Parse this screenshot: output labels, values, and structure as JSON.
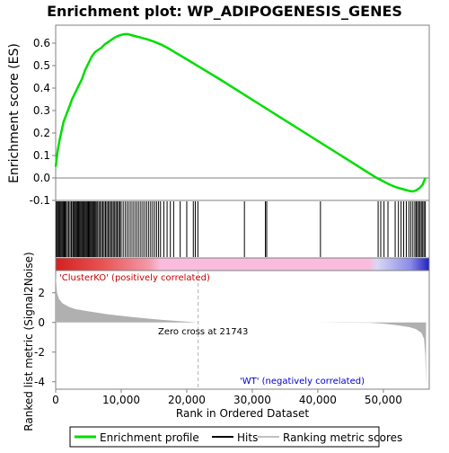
{
  "chart_data": [
    {
      "type": "line",
      "title": "Enrichment plot: WP_ADIPOGENESIS_GENES",
      "ylabel": "Enrichment score (ES)",
      "ylim": [
        -0.1,
        0.68
      ],
      "yticks": [
        "-0.1",
        "0.0",
        "0.1",
        "0.2",
        "0.3",
        "0.4",
        "0.5",
        "0.6"
      ],
      "grid": false,
      "series": [
        {
          "name": "Enrichment profile",
          "color": "#00dd00",
          "x": [
            0,
            300,
            600,
            900,
            1200,
            1600,
            2000,
            2500,
            3000,
            3500,
            4000,
            4500,
            5000,
            5500,
            6000,
            6500,
            7000,
            7500,
            8000,
            8500,
            9000,
            9500,
            10000,
            10500,
            11000,
            12000,
            13000,
            14000,
            15000,
            16000,
            17000,
            18000,
            20000,
            22000,
            25000,
            28000,
            31000,
            34000,
            37000,
            40000,
            43000,
            46000,
            49000,
            51000,
            52000,
            53000,
            54000,
            54500,
            55000,
            55500,
            56000,
            56400
          ],
          "y": [
            0.05,
            0.12,
            0.17,
            0.21,
            0.25,
            0.28,
            0.31,
            0.35,
            0.38,
            0.41,
            0.44,
            0.48,
            0.51,
            0.54,
            0.56,
            0.57,
            0.58,
            0.595,
            0.605,
            0.615,
            0.625,
            0.632,
            0.637,
            0.64,
            0.64,
            0.632,
            0.625,
            0.617,
            0.607,
            0.595,
            0.58,
            0.563,
            0.528,
            0.493,
            0.44,
            0.385,
            0.33,
            0.275,
            0.22,
            0.165,
            0.11,
            0.055,
            0.0,
            -0.03,
            -0.042,
            -0.05,
            -0.058,
            -0.06,
            -0.055,
            -0.045,
            -0.03,
            0.0
          ]
        }
      ]
    },
    {
      "type": "bar",
      "title": "",
      "legend_label": "Hits",
      "hit_positions": [
        100,
        250,
        400,
        550,
        700,
        850,
        1000,
        1150,
        1300,
        1450,
        1600,
        1800,
        2000,
        2200,
        2400,
        2600,
        2750,
        2900,
        3050,
        3200,
        3350,
        3500,
        3650,
        3800,
        3950,
        4100,
        4250,
        4400,
        4550,
        4700,
        4850,
        5000,
        5150,
        5300,
        5450,
        5600,
        5750,
        5900,
        6050,
        6200,
        6400,
        6600,
        6800,
        7000,
        7200,
        7400,
        7600,
        7800,
        8000,
        8200,
        8400,
        8600,
        8800,
        9000,
        9200,
        9400,
        9600,
        9800,
        10000,
        10300,
        10600,
        10900,
        11200,
        11500,
        11800,
        12100,
        12400,
        12700,
        13000,
        13300,
        13600,
        13900,
        14200,
        14500,
        14800,
        15100,
        15400,
        15700,
        16000,
        16500,
        17000,
        17500,
        18000,
        19000,
        20000,
        21000,
        21300,
        21700,
        28800,
        32000,
        32200,
        40400,
        49200,
        49600,
        50100,
        50700,
        51800,
        52300,
        52700,
        53100,
        53500,
        53900,
        54200,
        54500,
        54800,
        55000,
        55200,
        55400,
        55600,
        55800,
        56000,
        56200,
        56400
      ]
    },
    {
      "type": "area",
      "ylabel": "Ranked list metric (Signal2Noise)",
      "xlabel": "Rank in Ordered Dataset",
      "xlim": [
        0,
        57000
      ],
      "ylim": [
        -4.5,
        3.5
      ],
      "xticks": [
        "0",
        "10,000",
        "20,000",
        "30,000",
        "40,000",
        "50,000"
      ],
      "yticks": [
        "-4",
        "-2",
        "0",
        "2"
      ],
      "series": [
        {
          "name": "Ranking metric scores",
          "color": "#b0b0b0",
          "x": [
            0,
            200,
            500,
            1000,
            2000,
            3000,
            5000,
            8000,
            12000,
            16000,
            20000,
            21743,
            30000,
            40000,
            48000,
            50000,
            52000,
            54000,
            55000,
            55800,
            56200,
            56400,
            56500
          ],
          "y": [
            3.2,
            2.0,
            1.6,
            1.3,
            1.05,
            0.9,
            0.75,
            0.55,
            0.35,
            0.18,
            0.05,
            0.0,
            0.0,
            0.0,
            -0.02,
            -0.08,
            -0.18,
            -0.32,
            -0.45,
            -0.7,
            -1.1,
            -2.2,
            -4.2
          ]
        }
      ],
      "annotations": [
        {
          "text": "'ClusterKO' (positively correlated)",
          "color": "#cc0000"
        },
        {
          "text": "Zero cross at 21743",
          "color": "#000000"
        },
        {
          "text": "'WT' (negatively correlated)",
          "color": "#0000cc"
        }
      ]
    }
  ],
  "legend": {
    "items": [
      {
        "label": "Enrichment profile",
        "color": "#00dd00"
      },
      {
        "label": "Hits",
        "color": "#000000"
      },
      {
        "label": "Ranking metric scores",
        "color": "#c0c0c0"
      }
    ]
  },
  "zero_cross": 21743,
  "n_genes": 57000
}
